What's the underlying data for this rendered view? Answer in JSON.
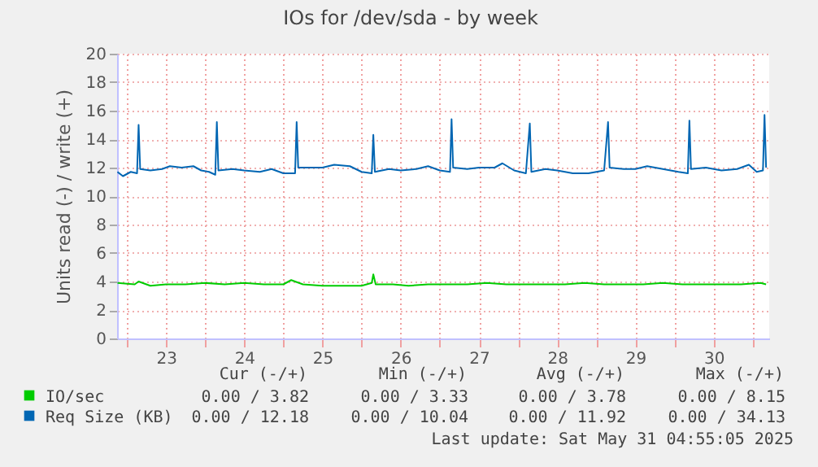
{
  "chart_data": {
    "type": "line",
    "title": "IOs for /dev/sda - by week",
    "ylabel": "Units read (-) / write (+)",
    "xlim": [
      22.375,
      30.71
    ],
    "ylim": [
      0,
      20
    ],
    "xticks": [
      {
        "value": 22.5,
        "label": null
      },
      23,
      {
        "value": 23.5,
        "label": null
      },
      24,
      {
        "value": 24.5,
        "label": null
      },
      25,
      {
        "value": 25.5,
        "label": null
      },
      26,
      {
        "value": 26.5,
        "label": null
      },
      27,
      {
        "value": 27.5,
        "label": null
      },
      28,
      {
        "value": 28.5,
        "label": null
      },
      29,
      {
        "value": 29.5,
        "label": null
      },
      30,
      {
        "value": 30.5,
        "label": null
      }
    ],
    "yticks": [
      0,
      2,
      4,
      6,
      8,
      10,
      12,
      14,
      16,
      18,
      20
    ],
    "grid": true,
    "legend": "bottom",
    "marker": "none",
    "line_style": "solid",
    "series": [
      {
        "name": "IO/sec",
        "color": "#00cc00",
        "x": [
          22.38,
          22.6,
          22.65,
          22.8,
          23.0,
          23.25,
          23.5,
          23.75,
          24.0,
          24.25,
          24.5,
          24.6,
          24.75,
          25.0,
          25.25,
          25.5,
          25.63,
          25.65,
          25.68,
          25.9,
          26.1,
          26.35,
          26.6,
          26.85,
          27.1,
          27.35,
          27.6,
          27.85,
          28.1,
          28.35,
          28.6,
          28.85,
          29.1,
          29.35,
          29.6,
          29.85,
          30.1,
          30.35,
          30.6,
          30.67
        ],
        "values": [
          3.9,
          3.8,
          4.0,
          3.7,
          3.8,
          3.8,
          3.9,
          3.8,
          3.9,
          3.8,
          3.8,
          4.1,
          3.8,
          3.7,
          3.7,
          3.7,
          3.9,
          4.5,
          3.8,
          3.8,
          3.7,
          3.8,
          3.8,
          3.8,
          3.9,
          3.8,
          3.8,
          3.8,
          3.8,
          3.9,
          3.8,
          3.8,
          3.8,
          3.9,
          3.8,
          3.8,
          3.8,
          3.8,
          3.9,
          3.8
        ]
      },
      {
        "name": "Req Size (KB)",
        "color": "#0066b3",
        "x": [
          22.38,
          22.45,
          22.55,
          22.63,
          22.65,
          22.67,
          22.8,
          22.95,
          23.05,
          23.2,
          23.35,
          23.45,
          23.55,
          23.63,
          23.65,
          23.67,
          23.85,
          24.0,
          24.2,
          24.35,
          24.5,
          24.65,
          24.67,
          24.69,
          24.85,
          25.0,
          25.15,
          25.35,
          25.5,
          25.63,
          25.65,
          25.67,
          25.85,
          26.0,
          26.2,
          26.35,
          26.5,
          26.63,
          26.65,
          26.67,
          26.85,
          27.0,
          27.2,
          27.3,
          27.45,
          27.6,
          27.65,
          27.67,
          27.85,
          28.0,
          28.2,
          28.4,
          28.6,
          28.65,
          28.67,
          28.85,
          29.0,
          29.15,
          29.35,
          29.55,
          29.67,
          29.69,
          29.71,
          29.9,
          30.1,
          30.3,
          30.45,
          30.55,
          30.63,
          30.65,
          30.67
        ],
        "values": [
          11.7,
          11.4,
          11.7,
          11.6,
          15.0,
          11.9,
          11.8,
          11.9,
          12.1,
          12.0,
          12.1,
          11.8,
          11.7,
          11.5,
          15.2,
          11.8,
          11.9,
          11.8,
          11.7,
          11.9,
          11.6,
          11.6,
          15.2,
          12.0,
          12.0,
          12.0,
          12.2,
          12.1,
          11.7,
          11.6,
          14.3,
          11.7,
          11.9,
          11.8,
          11.9,
          12.1,
          11.8,
          11.7,
          15.4,
          12.0,
          11.9,
          12.0,
          12.0,
          12.3,
          11.8,
          11.6,
          15.1,
          11.7,
          11.9,
          11.8,
          11.6,
          11.6,
          11.8,
          15.2,
          12.0,
          11.9,
          11.9,
          12.1,
          11.9,
          11.7,
          11.6,
          15.3,
          11.9,
          12.0,
          11.8,
          11.9,
          12.2,
          11.7,
          11.8,
          15.7,
          12.0
        ]
      }
    ],
    "annotations": [
      "Cur (-/+)",
      "Min (-/+)",
      "Avg (-/+)",
      "Max (-/+)",
      "0.00 /  3.82",
      "0.00 /  3.33",
      "0.00 /  3.78",
      "0.00 /  8.15",
      "0.00 / 12.18",
      "0.00 / 10.04",
      "0.00 / 11.92",
      "0.00 / 34.13",
      "Last update: Sat May 31 04:55:05 2025"
    ]
  }
}
